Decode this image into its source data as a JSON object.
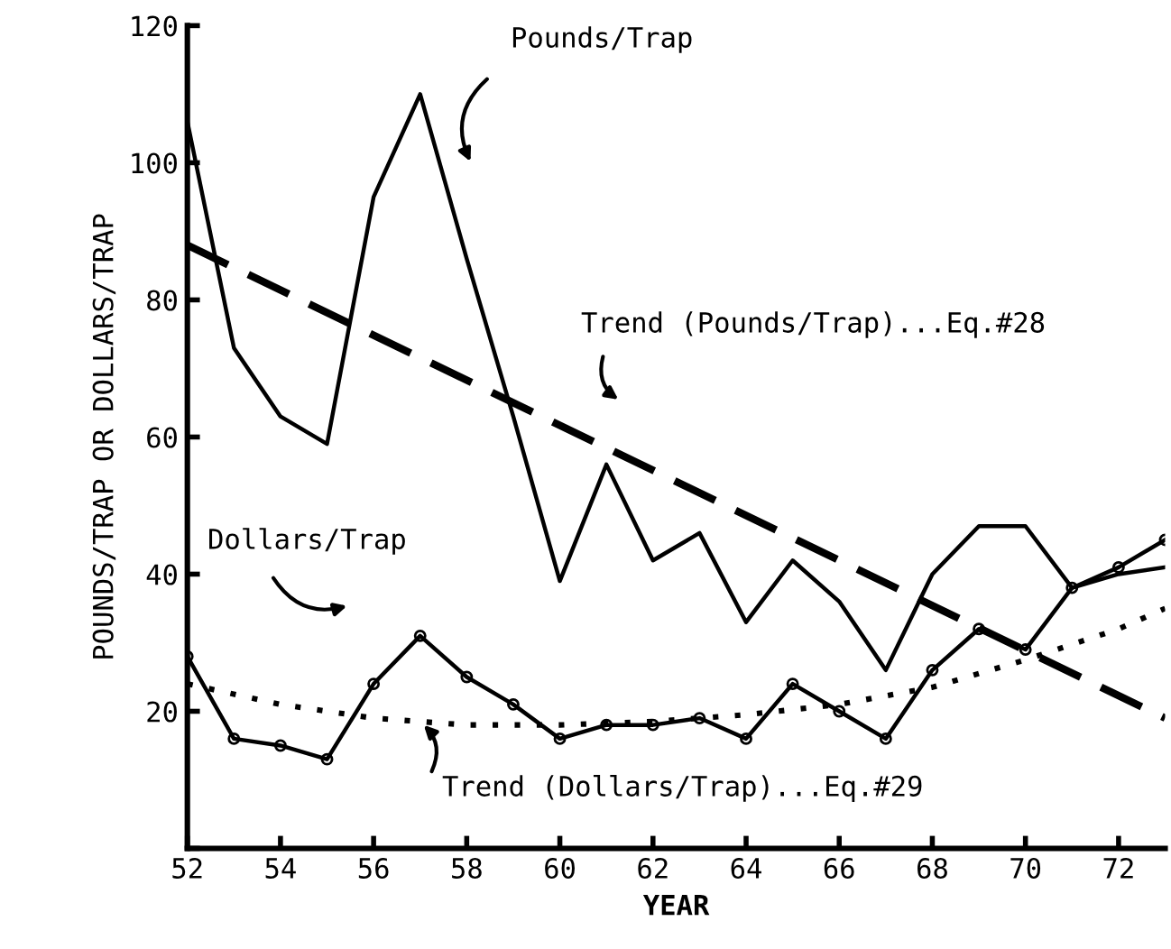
{
  "chart_data": {
    "type": "line",
    "xlabel": "YEAR",
    "ylabel": "POUNDS/TRAP OR DOLLARS/TRAP",
    "x": [
      52,
      53,
      54,
      55,
      56,
      57,
      58,
      59,
      60,
      61,
      62,
      63,
      64,
      65,
      66,
      67,
      68,
      69,
      70,
      71,
      72,
      73
    ],
    "series": [
      {
        "color": "#000000",
        "line_style": "solid",
        "marker": "none",
        "values": [
          106,
          73,
          63,
          59,
          95,
          110,
          86,
          63,
          39,
          56,
          42,
          46,
          33,
          42,
          36,
          26,
          40,
          47,
          47,
          38,
          40,
          41
        ]
      },
      {
        "color": "#000000",
        "line_style": "dashed",
        "marker": "none",
        "x": [
          52,
          73
        ],
        "values": [
          88,
          19
        ]
      },
      {
        "color": "#000000",
        "line_style": "solid",
        "marker": "circle",
        "values": [
          28,
          16,
          15,
          13,
          24,
          31,
          25,
          21,
          16,
          18,
          18,
          19,
          16,
          24,
          20,
          16,
          26,
          32,
          29,
          38,
          41,
          45
        ]
      },
      {
        "color": "#000000",
        "line_style": "dotted",
        "marker": "none",
        "x": [
          52,
          54,
          56,
          58,
          60,
          62,
          64,
          66,
          68,
          70,
          72,
          73
        ],
        "values": [
          24,
          21,
          19,
          18,
          18,
          18.5,
          19.5,
          21,
          23.5,
          27.5,
          32,
          35
        ]
      }
    ],
    "xlim": [
      52,
      73
    ],
    "ylim": [
      0,
      120
    ],
    "xticks": [
      52,
      54,
      56,
      58,
      60,
      62,
      64,
      66,
      68,
      70,
      72
    ],
    "yticks": [
      {
        "value": 0,
        "label": null
      },
      20,
      40,
      60,
      80,
      100,
      120
    ],
    "grid": false,
    "legend": false,
    "annotations": [
      "Pounds/Trap",
      "Trend (Pounds/Trap)...Eq.#28",
      "Dollars/Trap",
      {
        "text": "Trend (Dollars/Trap)...Eq.#29",
        "x": 57,
        "y": 18.5
      }
    ]
  }
}
